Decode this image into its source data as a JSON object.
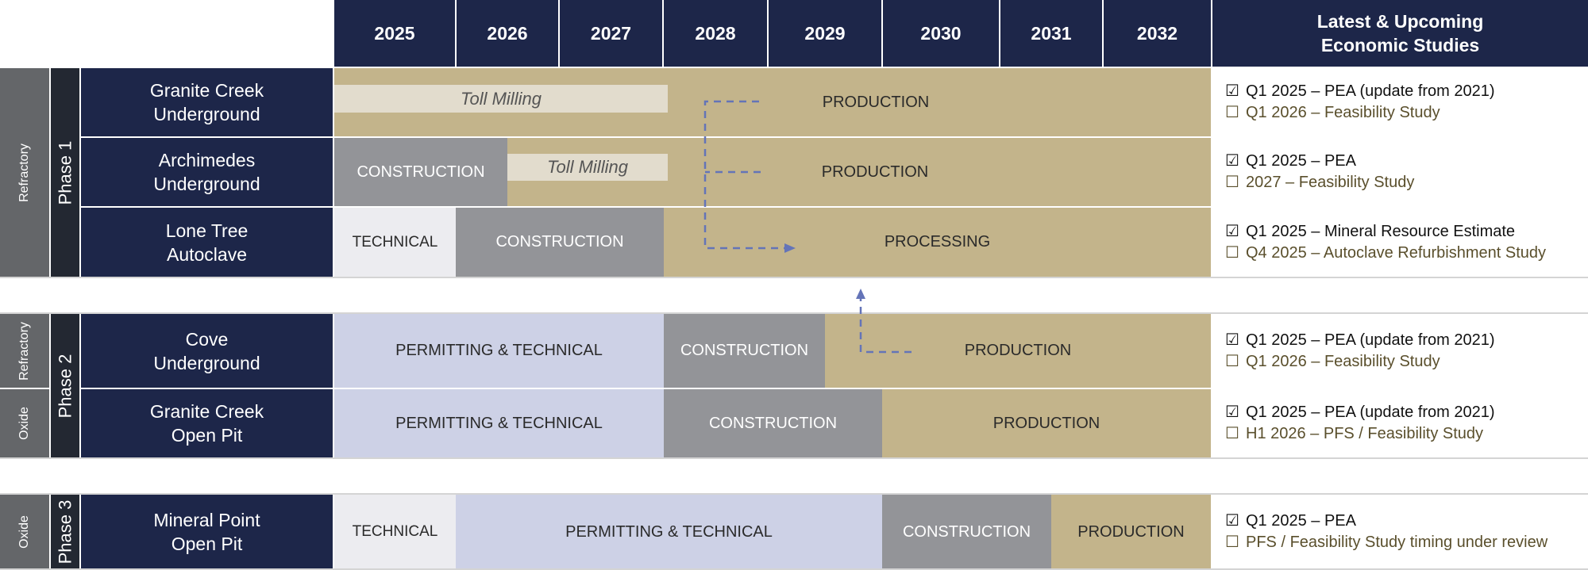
{
  "header": {
    "years": [
      "2025",
      "2026",
      "2027",
      "2028",
      "2029",
      "2030",
      "2031",
      "2032"
    ],
    "studies_title_line1": "Latest & Upcoming",
    "studies_title_line2": "Economic Studies"
  },
  "groups": {
    "refractory_1": "Refractory",
    "phase1": "Phase 1",
    "refractory_2": "Refractory",
    "oxide_2": "Oxide",
    "phase2": "Phase 2",
    "oxide_3": "Oxide",
    "phase3": "Phase 3"
  },
  "rows": [
    {
      "name_line1": "Granite Creek",
      "name_line2": "Underground",
      "segments": {
        "toll": "Toll Milling",
        "production": "PRODUCTION"
      },
      "studies": [
        {
          "mark": "☑",
          "text": "Q1 2025 – PEA (update from 2021)",
          "done": true
        },
        {
          "mark": "☐",
          "text": "Q1 2026 – Feasibility Study",
          "done": false
        }
      ]
    },
    {
      "name_line1": "Archimedes",
      "name_line2": "Underground",
      "segments": {
        "construction": "CONSTRUCTION",
        "toll": "Toll Milling",
        "production": "PRODUCTION"
      },
      "studies": [
        {
          "mark": "☑",
          "text": "Q1 2025 – PEA",
          "done": true
        },
        {
          "mark": "☐",
          "text": "2027 – Feasibility Study",
          "done": false
        }
      ]
    },
    {
      "name_line1": "Lone Tree",
      "name_line2": "Autoclave",
      "segments": {
        "technical": "TECHNICAL",
        "construction": "CONSTRUCTION",
        "processing": "PROCESSING"
      },
      "studies": [
        {
          "mark": "☑",
          "text": "Q1 2025 – Mineral Resource Estimate",
          "done": true
        },
        {
          "mark": "☐",
          "text": "Q4 2025 – Autoclave Refurbishment Study",
          "done": false
        }
      ]
    },
    {
      "name_line1": "Cove",
      "name_line2": "Underground",
      "segments": {
        "permitting": "PERMITTING & TECHNICAL",
        "construction": "CONSTRUCTION",
        "production": "PRODUCTION"
      },
      "studies": [
        {
          "mark": "☑",
          "text": "Q1 2025 – PEA (update from 2021)",
          "done": true
        },
        {
          "mark": "☐",
          "text": "Q1 2026 – Feasibility Study",
          "done": false
        }
      ]
    },
    {
      "name_line1": "Granite Creek",
      "name_line2": "Open Pit",
      "segments": {
        "permitting": "PERMITTING & TECHNICAL",
        "construction": "CONSTRUCTION",
        "production": "PRODUCTION"
      },
      "studies": [
        {
          "mark": "☑",
          "text": "Q1 2025 – PEA (update from 2021)",
          "done": true
        },
        {
          "mark": "☐",
          "text": "H1 2026 – PFS / Feasibility Study",
          "done": false
        }
      ]
    },
    {
      "name_line1": "Mineral Point",
      "name_line2": "Open Pit",
      "segments": {
        "technical": "TECHNICAL",
        "permitting": "PERMITTING & TECHNICAL",
        "construction": "CONSTRUCTION",
        "production": "PRODUCTION"
      },
      "studies": [
        {
          "mark": "☑",
          "text": "Q1 2025 – PEA",
          "done": true
        },
        {
          "mark": "☐",
          "text": "PFS / Feasibility Study timing under review",
          "done": false
        }
      ]
    }
  ],
  "colors": {
    "navy": "#1d2649",
    "production": "#c3b48b",
    "construction": "#939498",
    "technical": "#ececf0",
    "permitting": "#cdd1e6",
    "toll_milling": "#e2dccd",
    "arrow": "#6474b8"
  }
}
